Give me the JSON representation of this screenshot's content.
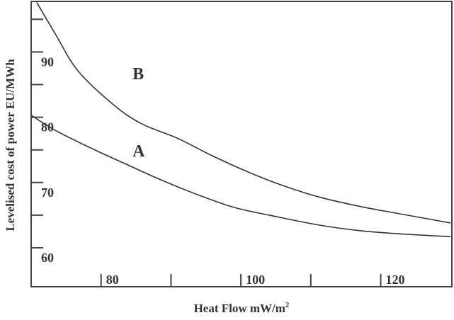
{
  "chart_data": {
    "type": "line",
    "title": "",
    "xlabel": "Heat Flow mW/m²",
    "ylabel": "Levelised cost of power EU/MWh",
    "xlim": [
      70,
      130
    ],
    "ylim": [
      54,
      98
    ],
    "x_ticks": [
      80,
      90,
      100,
      110,
      120
    ],
    "x_tick_labels": [
      "80",
      "",
      "100",
      "",
      "120"
    ],
    "y_ticks": [
      60,
      65,
      70,
      75,
      80,
      85,
      90,
      95
    ],
    "y_tick_labels": [
      "60",
      "",
      "70",
      "",
      "80",
      "",
      "90",
      ""
    ],
    "grid": false,
    "legend": "inline labels",
    "series": [
      {
        "name": "A",
        "x": [
          70,
          73.6,
          78.7,
          83.8,
          88.8,
          93.9,
          99.0,
          104.5,
          111.1,
          117.2,
          123.3,
          130
        ],
        "values": [
          80.3,
          77.9,
          75.2,
          72.7,
          70.3,
          68.1,
          66.2,
          64.9,
          63.5,
          62.6,
          62.1,
          61.7
        ],
        "label_pos": [
          84.5,
          74.0
        ]
      },
      {
        "name": "B",
        "x": [
          70.8,
          73.6,
          76.7,
          81.8,
          85.8,
          90.9,
          95.9,
          101.5,
          106.1,
          111.1,
          117.2,
          123.3,
          130
        ],
        "values": [
          97.6,
          92.5,
          87.1,
          81.9,
          79.0,
          76.8,
          74.1,
          71.4,
          69.5,
          67.8,
          66.3,
          65.1,
          63.8
        ],
        "label_pos": [
          84.5,
          85.8
        ]
      }
    ]
  }
}
